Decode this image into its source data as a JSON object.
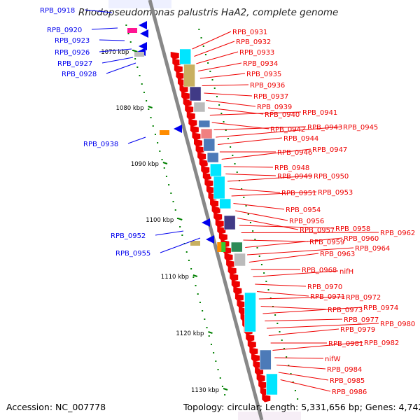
{
  "title": "Rhodopseudomonas palustris HaA2, complete genome",
  "footer": {
    "accession": "Accession: NC_007778",
    "summary": "Topology: circular; Length: 5,331,656 bp; Genes: 4,742"
  },
  "colors": {
    "backbone": "#888888",
    "forward_gene": "#0000ee",
    "reverse_gene": "#ee0000",
    "tick": "#008000"
  },
  "kbp_ticks": [
    "1070 kbp",
    "1080 kbp",
    "1090 kbp",
    "1100 kbp",
    "1110 kbp",
    "1120 kbp",
    "1130 kbp"
  ],
  "left_labels": [
    "RPB_0918",
    "RPB_0920",
    "RPB_0923",
    "RPB_0926",
    "RPB_0927",
    "RPB_0928",
    "RPB_0938",
    "RPB_0952",
    "RPB_0955"
  ],
  "right_labels": [
    "RPB_0931",
    "RPB_0932",
    "RPB_0933",
    "RPB_0934",
    "RPB_0935",
    "RPB_0936",
    "RPB_0937",
    "RPB_0939",
    "RPB_0940",
    "RPB_0941",
    "RPB_0942",
    "RPB_0943",
    "RPB_0945",
    "RPB_0944",
    "RPB_0946",
    "RPB_0947",
    "RPB_0948",
    "RPB_0949",
    "RPB_0950",
    "RPB_0951",
    "RPB_0953",
    "RPB_0954",
    "RPB_0956",
    "RPB_0957",
    "RPB_0958",
    "RPB_0962",
    "RPB_0959",
    "RPB_0960",
    "RPB_0964",
    "RPB_0963",
    "RPB_0968",
    "nifH",
    "RPB_0970",
    "RPB_0971",
    "RPB_0972",
    "RPB_0973",
    "RPB_0974",
    "RPB_0977",
    "RPB_0980",
    "RPB_0979",
    "RPB_0981",
    "RPB_0982",
    "nifW",
    "RPB_0984",
    "RPB_0985",
    "RPB_0986"
  ]
}
